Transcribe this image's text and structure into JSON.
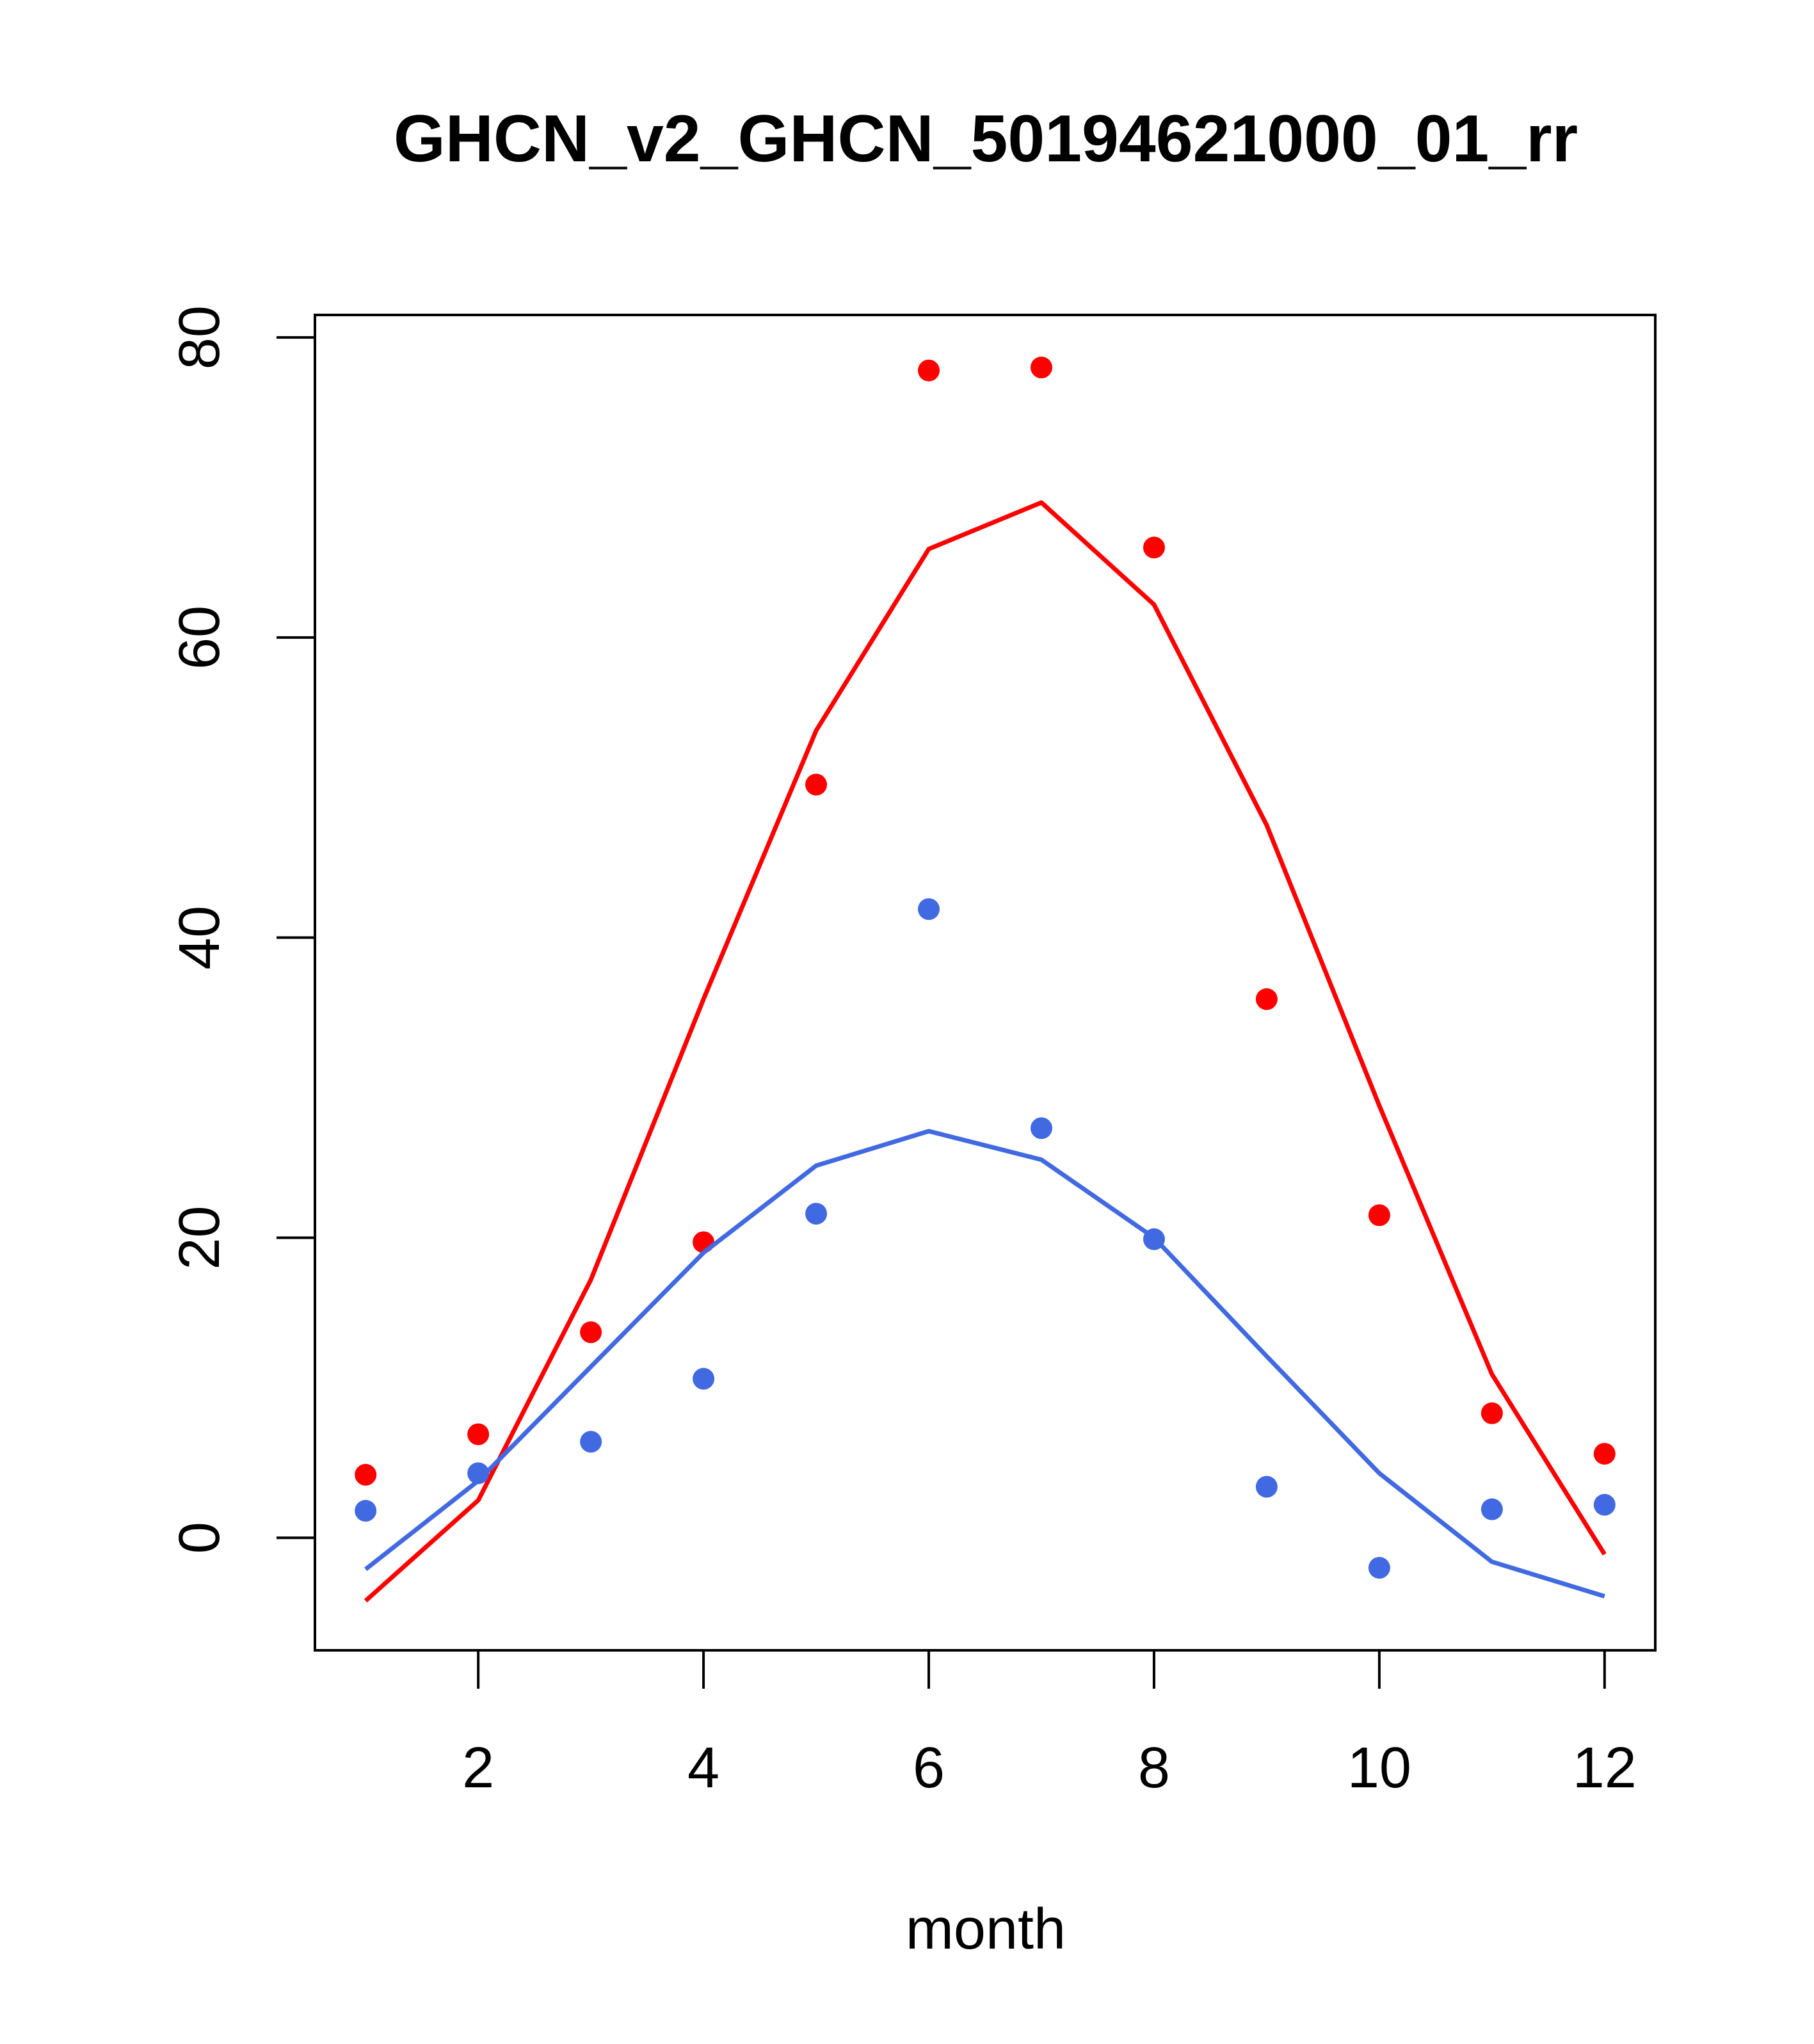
{
  "chart_data": {
    "type": "line",
    "title": "GHCN_v2_GHCN_50194621000_01_rr",
    "xlabel": "month",
    "ylabel": "",
    "xlim": [
      0.55,
      12.45
    ],
    "ylim": [
      -7.5,
      81.5
    ],
    "x_ticks": [
      2,
      4,
      6,
      8,
      10,
      12
    ],
    "y_ticks": [
      0,
      20,
      40,
      60,
      80
    ],
    "grid": false,
    "legend": "none",
    "x": [
      1,
      2,
      3,
      4,
      5,
      6,
      7,
      8,
      9,
      10,
      11,
      12
    ],
    "series": [
      {
        "color": "#ff0000",
        "points": [
          4.2,
          6.9,
          13.7,
          19.7,
          50.2,
          77.8,
          78.0,
          66.0,
          35.9,
          21.5,
          8.3,
          5.6
        ],
        "line": [
          -4.2,
          2.5,
          17.2,
          35.9,
          53.8,
          65.9,
          69.0,
          62.2,
          47.5,
          28.8,
          10.9,
          -1.1
        ]
      },
      {
        "color": "#4169e1",
        "points": [
          1.8,
          4.3,
          6.4,
          10.6,
          21.6,
          41.9,
          27.3,
          19.9,
          3.4,
          -2.0,
          1.9,
          2.2
        ],
        "line": [
          -2.1,
          3.8,
          11.4,
          19.0,
          24.8,
          27.1,
          25.2,
          20.0,
          12.1,
          4.3,
          -1.6,
          -3.9
        ]
      }
    ]
  }
}
